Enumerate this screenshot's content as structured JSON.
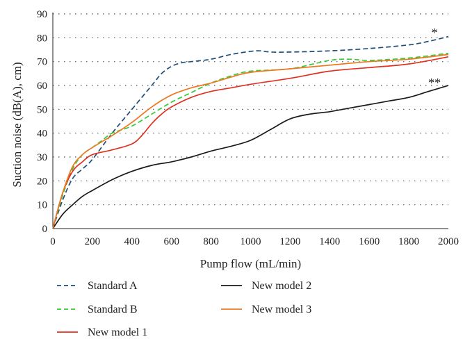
{
  "chart_data": {
    "type": "line",
    "xlabel": "Pump flow (mL/min)",
    "ylabel": "Suction noise (dB(A), cm)",
    "xlim": [
      0,
      2000
    ],
    "ylim": [
      0,
      90
    ],
    "xticks": [
      "0",
      "200",
      "400",
      "600",
      "800",
      "1000",
      "1200",
      "1400",
      "1600",
      "1800",
      "2000"
    ],
    "yticks": [
      "0",
      "10",
      "20",
      "30",
      "40",
      "50",
      "60",
      "70",
      "80",
      "90"
    ],
    "grid": "horizontal-dotted",
    "legend_position": "bottom",
    "series": [
      {
        "name": "Standard A",
        "color": "#1f4e79",
        "dash": "dashed",
        "x": [
          0,
          50,
          100,
          150,
          200,
          300,
          400,
          500,
          550,
          600,
          650,
          700,
          800,
          900,
          1000,
          1050,
          1100,
          1200,
          1400,
          1600,
          1800,
          1900,
          2000
        ],
        "y": [
          0,
          12,
          21,
          25,
          29,
          40,
          50,
          60,
          65,
          68,
          69.5,
          70,
          71,
          73,
          74.3,
          74.5,
          74,
          74,
          74.5,
          75.5,
          77,
          78.5,
          80.5
        ]
      },
      {
        "name": "Standard B",
        "color": "#33cc33",
        "dash": "dashed",
        "x": [
          0,
          50,
          100,
          150,
          200,
          250,
          300,
          400,
          500,
          600,
          700,
          800,
          900,
          1000,
          1200,
          1400,
          1500,
          1600,
          1800,
          2000
        ],
        "y": [
          0,
          14,
          25,
          31,
          34,
          37,
          40,
          43,
          48,
          53,
          57,
          61,
          64,
          66,
          67,
          70.5,
          71,
          70.5,
          71.5,
          73.5
        ]
      },
      {
        "name": "New model 1",
        "color": "#e03020",
        "dash": "solid",
        "x": [
          0,
          50,
          100,
          150,
          200,
          300,
          400,
          450,
          500,
          550,
          600,
          700,
          800,
          900,
          1000,
          1200,
          1400,
          1600,
          1800,
          2000
        ],
        "y": [
          0,
          15,
          24,
          28,
          31,
          33,
          35.5,
          39,
          44,
          48,
          51,
          55,
          57.5,
          59,
          60.5,
          63,
          66,
          67.5,
          69,
          72
        ]
      },
      {
        "name": "New model 2",
        "color": "#1a1a1a",
        "dash": "solid",
        "x": [
          0,
          50,
          100,
          150,
          200,
          300,
          400,
          500,
          600,
          700,
          800,
          900,
          1000,
          1100,
          1200,
          1300,
          1400,
          1500,
          1600,
          1700,
          1800,
          1900,
          2000
        ],
        "y": [
          0,
          6,
          10,
          13.5,
          16,
          20.5,
          24,
          26.5,
          28,
          30,
          32.5,
          34.5,
          37,
          41.5,
          46,
          48,
          49,
          50.5,
          52,
          53.5,
          55,
          57.5,
          60
        ]
      },
      {
        "name": "New model 3",
        "color": "#ee7722",
        "dash": "solid",
        "x": [
          0,
          50,
          100,
          150,
          200,
          300,
          400,
          500,
          600,
          700,
          800,
          900,
          1000,
          1200,
          1400,
          1600,
          1800,
          2000
        ],
        "y": [
          0,
          15,
          26,
          31,
          34,
          39,
          44.5,
          51,
          56,
          59,
          61,
          63.5,
          65.5,
          67,
          68.5,
          70,
          71,
          73
        ]
      }
    ],
    "annotations": [
      {
        "text": "*",
        "x": 1930,
        "y": 82.5
      },
      {
        "text": "**",
        "x": 1930,
        "y": 61.5
      }
    ]
  }
}
